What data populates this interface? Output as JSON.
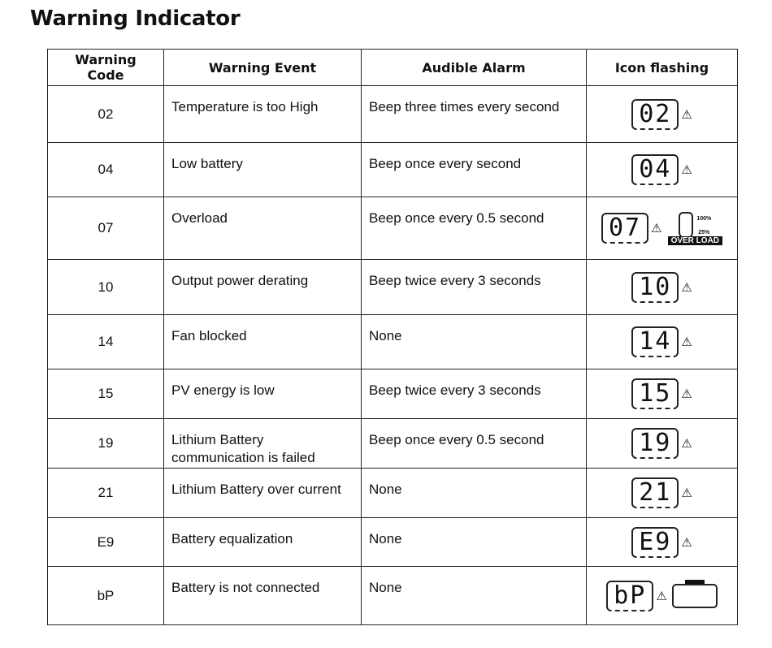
{
  "title": "Warning Indicator",
  "headers": [
    "Warning Code",
    "Warning Event",
    "Audible Alarm",
    "Icon flashing"
  ],
  "rows": [
    {
      "code": "02",
      "event": "Temperature is too High",
      "alarm": "Beep three times every second",
      "icon": "02"
    },
    {
      "code": "04",
      "event": "Low battery",
      "alarm": "Beep once every second",
      "icon": "04"
    },
    {
      "code": "07",
      "event": "Overload",
      "alarm": "Beep once every 0.5 second",
      "icon": "07"
    },
    {
      "code": "10",
      "event": "Output power derating",
      "alarm": "Beep twice every 3 seconds",
      "icon": "10"
    },
    {
      "code": "14",
      "event": "Fan blocked",
      "alarm": "None",
      "icon": "14"
    },
    {
      "code": "15",
      "event": "PV energy is low",
      "alarm": "Beep twice every 3 seconds",
      "icon": "15"
    },
    {
      "code": "19",
      "event": "Lithium Battery communication is failed",
      "alarm": "Beep once every 0.5 second",
      "icon": "19"
    },
    {
      "code": "21",
      "event": "Lithium Battery over current",
      "alarm": "None",
      "icon": "21"
    },
    {
      "code": "E9",
      "event": "Battery equalization",
      "alarm": "None",
      "icon": "E9"
    },
    {
      "code": "bP",
      "event": "Battery is not connected",
      "alarm": "None",
      "icon": "bP"
    }
  ],
  "overload_icon": {
    "label": "OVER LOAD",
    "level_high": "100%",
    "level_low": "25%"
  },
  "warning_icon": "warning-triangle-icon"
}
